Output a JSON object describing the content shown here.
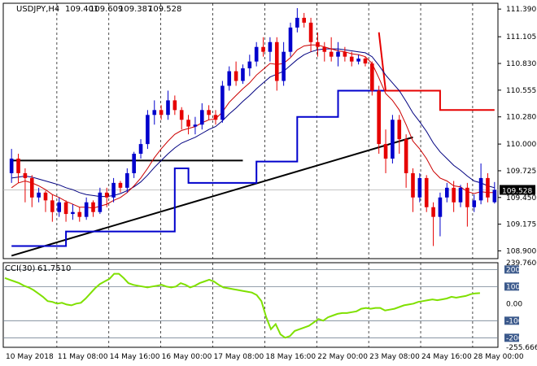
{
  "chart_data": {
    "type": "candlestick",
    "symbol_header": "USDJPY,H4",
    "ohlc_header": [
      "109.401",
      "109.609",
      "109.387",
      "109.528"
    ],
    "price_axis": {
      "range": [
        108.82,
        111.45
      ],
      "ticks": [
        "111.390",
        "111.105",
        "110.830",
        "110.555",
        "110.280",
        "110.000",
        "109.725",
        "109.450",
        "109.175",
        "108.900"
      ],
      "current_price": "109.528"
    },
    "time_axis_labels": [
      "10 May 2018",
      "11 May 08:00",
      "14 May 16:00",
      "16 May 00:00",
      "17 May 08:00",
      "18 May 16:00",
      "22 May 00:00",
      "23 May 08:00",
      "24 May 16:00",
      "28 May 00:00"
    ],
    "colors": {
      "bull": "#0000cc",
      "bear": "#e60000",
      "cci": "#7fe000",
      "support_resistance": "#000000"
    },
    "candles": [
      {
        "o": 109.7,
        "h": 109.95,
        "l": 109.6,
        "c": 109.85
      },
      {
        "o": 109.85,
        "h": 109.9,
        "l": 109.6,
        "c": 109.7
      },
      {
        "o": 109.7,
        "h": 109.75,
        "l": 109.4,
        "c": 109.65
      },
      {
        "o": 109.65,
        "h": 109.68,
        "l": 109.35,
        "c": 109.45
      },
      {
        "o": 109.45,
        "h": 109.55,
        "l": 109.4,
        "c": 109.5
      },
      {
        "o": 109.5,
        "h": 109.52,
        "l": 109.3,
        "c": 109.42
      },
      {
        "o": 109.42,
        "h": 109.48,
        "l": 109.2,
        "c": 109.3
      },
      {
        "o": 109.3,
        "h": 109.45,
        "l": 109.25,
        "c": 109.4
      },
      {
        "o": 109.4,
        "h": 109.42,
        "l": 109.2,
        "c": 109.28
      },
      {
        "o": 109.28,
        "h": 109.38,
        "l": 109.22,
        "c": 109.3
      },
      {
        "o": 109.3,
        "h": 109.35,
        "l": 109.2,
        "c": 109.25
      },
      {
        "o": 109.25,
        "h": 109.45,
        "l": 109.22,
        "c": 109.4
      },
      {
        "o": 109.4,
        "h": 109.42,
        "l": 109.25,
        "c": 109.3
      },
      {
        "o": 109.3,
        "h": 109.55,
        "l": 109.28,
        "c": 109.5
      },
      {
        "o": 109.5,
        "h": 109.55,
        "l": 109.35,
        "c": 109.45
      },
      {
        "o": 109.45,
        "h": 109.65,
        "l": 109.4,
        "c": 109.6
      },
      {
        "o": 109.6,
        "h": 109.62,
        "l": 109.5,
        "c": 109.55
      },
      {
        "o": 109.55,
        "h": 109.75,
        "l": 109.5,
        "c": 109.7
      },
      {
        "o": 109.7,
        "h": 109.92,
        "l": 109.65,
        "c": 109.9
      },
      {
        "o": 109.9,
        "h": 110.05,
        "l": 109.85,
        "c": 110.0
      },
      {
        "o": 110.0,
        "h": 110.35,
        "l": 109.95,
        "c": 110.3
      },
      {
        "o": 110.3,
        "h": 110.45,
        "l": 110.2,
        "c": 110.35
      },
      {
        "o": 110.35,
        "h": 110.4,
        "l": 110.25,
        "c": 110.3
      },
      {
        "o": 110.3,
        "h": 110.55,
        "l": 110.25,
        "c": 110.45
      },
      {
        "o": 110.45,
        "h": 110.5,
        "l": 110.3,
        "c": 110.35
      },
      {
        "o": 110.35,
        "h": 110.38,
        "l": 110.15,
        "c": 110.25
      },
      {
        "o": 110.25,
        "h": 110.3,
        "l": 110.1,
        "c": 110.18
      },
      {
        "o": 110.18,
        "h": 110.28,
        "l": 110.1,
        "c": 110.2
      },
      {
        "o": 110.2,
        "h": 110.42,
        "l": 110.15,
        "c": 110.35
      },
      {
        "o": 110.35,
        "h": 110.4,
        "l": 110.25,
        "c": 110.3
      },
      {
        "o": 110.3,
        "h": 110.35,
        "l": 110.2,
        "c": 110.25
      },
      {
        "o": 110.25,
        "h": 110.65,
        "l": 110.22,
        "c": 110.6
      },
      {
        "o": 110.6,
        "h": 110.8,
        "l": 110.55,
        "c": 110.75
      },
      {
        "o": 110.75,
        "h": 110.85,
        "l": 110.6,
        "c": 110.65
      },
      {
        "o": 110.65,
        "h": 110.82,
        "l": 110.62,
        "c": 110.78
      },
      {
        "o": 110.78,
        "h": 110.92,
        "l": 110.7,
        "c": 110.85
      },
      {
        "o": 110.85,
        "h": 111.05,
        "l": 110.8,
        "c": 111.0
      },
      {
        "o": 111.0,
        "h": 111.1,
        "l": 110.9,
        "c": 110.95
      },
      {
        "o": 110.95,
        "h": 111.1,
        "l": 110.85,
        "c": 111.05
      },
      {
        "o": 111.05,
        "h": 111.1,
        "l": 110.55,
        "c": 110.65
      },
      {
        "o": 110.65,
        "h": 111.05,
        "l": 110.6,
        "c": 110.95
      },
      {
        "o": 110.95,
        "h": 111.25,
        "l": 110.9,
        "c": 111.2
      },
      {
        "o": 111.2,
        "h": 111.4,
        "l": 111.15,
        "c": 111.3
      },
      {
        "o": 111.3,
        "h": 111.35,
        "l": 111.2,
        "c": 111.25
      },
      {
        "o": 111.25,
        "h": 111.3,
        "l": 110.95,
        "c": 111.05
      },
      {
        "o": 111.05,
        "h": 111.15,
        "l": 110.9,
        "c": 111.0
      },
      {
        "o": 111.0,
        "h": 111.05,
        "l": 110.85,
        "c": 110.95
      },
      {
        "o": 110.95,
        "h": 111.1,
        "l": 110.85,
        "c": 110.9
      },
      {
        "o": 110.9,
        "h": 111.05,
        "l": 110.8,
        "c": 110.95
      },
      {
        "o": 110.95,
        "h": 111.0,
        "l": 110.85,
        "c": 110.9
      },
      {
        "o": 110.9,
        "h": 110.95,
        "l": 110.8,
        "c": 110.85
      },
      {
        "o": 110.85,
        "h": 110.92,
        "l": 110.82,
        "c": 110.88
      },
      {
        "o": 110.88,
        "h": 110.9,
        "l": 110.8,
        "c": 110.83
      },
      {
        "o": 110.83,
        "h": 110.85,
        "l": 110.5,
        "c": 110.55
      },
      {
        "o": 110.55,
        "h": 110.6,
        "l": 109.9,
        "c": 110.0
      },
      {
        "o": 110.0,
        "h": 110.15,
        "l": 109.7,
        "c": 109.85
      },
      {
        "o": 109.85,
        "h": 110.3,
        "l": 109.8,
        "c": 110.25
      },
      {
        "o": 110.25,
        "h": 110.3,
        "l": 109.9,
        "c": 110.05
      },
      {
        "o": 110.05,
        "h": 110.1,
        "l": 109.55,
        "c": 109.7
      },
      {
        "o": 109.7,
        "h": 109.75,
        "l": 109.3,
        "c": 109.45
      },
      {
        "o": 109.45,
        "h": 109.7,
        "l": 109.4,
        "c": 109.65
      },
      {
        "o": 109.65,
        "h": 109.68,
        "l": 109.3,
        "c": 109.35
      },
      {
        "o": 109.35,
        "h": 109.4,
        "l": 108.95,
        "c": 109.25
      },
      {
        "o": 109.25,
        "h": 109.5,
        "l": 109.05,
        "c": 109.45
      },
      {
        "o": 109.45,
        "h": 109.6,
        "l": 109.4,
        "c": 109.55
      },
      {
        "o": 109.55,
        "h": 109.62,
        "l": 109.3,
        "c": 109.4
      },
      {
        "o": 109.4,
        "h": 109.58,
        "l": 109.35,
        "c": 109.55
      },
      {
        "o": 109.55,
        "h": 109.6,
        "l": 109.15,
        "c": 109.35
      },
      {
        "o": 109.35,
        "h": 109.48,
        "l": 109.3,
        "c": 109.42
      },
      {
        "o": 109.42,
        "h": 109.8,
        "l": 109.38,
        "c": 109.65
      },
      {
        "o": 109.65,
        "h": 109.7,
        "l": 109.4,
        "c": 109.45
      },
      {
        "o": 109.401,
        "h": 109.609,
        "l": 109.387,
        "c": 109.528
      }
    ],
    "ma_fast_color": "#cc0000",
    "ma_slow_color": "#000080",
    "ma_fast": [
      109.55,
      109.6,
      109.62,
      109.6,
      109.57,
      109.53,
      109.48,
      109.45,
      109.41,
      109.38,
      109.35,
      109.35,
      109.34,
      109.36,
      109.38,
      109.42,
      109.45,
      109.5,
      109.57,
      109.65,
      109.75,
      109.86,
      109.95,
      110.03,
      110.1,
      110.14,
      110.16,
      110.18,
      110.22,
      110.25,
      110.26,
      110.33,
      110.43,
      110.5,
      110.57,
      110.63,
      110.71,
      110.77,
      110.83,
      110.82,
      110.83,
      110.89,
      110.97,
      111.01,
      111.02,
      111.02,
      111.0,
      110.98,
      110.96,
      110.95,
      110.93,
      110.92,
      110.9,
      110.83,
      110.68,
      110.52,
      110.45,
      110.35,
      110.2,
      110.03,
      109.95,
      109.85,
      109.72,
      109.65,
      109.62,
      109.57,
      109.56,
      109.51,
      109.49,
      109.51,
      109.5,
      109.5
    ],
    "ma_slow": [
      109.65,
      109.66,
      109.67,
      109.66,
      109.64,
      109.62,
      109.6,
      109.58,
      109.55,
      109.53,
      109.5,
      109.48,
      109.47,
      109.46,
      109.46,
      109.47,
      109.49,
      109.52,
      109.56,
      109.61,
      109.68,
      109.76,
      109.83,
      109.9,
      109.96,
      110.01,
      110.04,
      110.07,
      110.11,
      110.15,
      110.18,
      110.24,
      110.31,
      110.37,
      110.44,
      110.5,
      110.57,
      110.63,
      110.69,
      110.72,
      110.75,
      110.81,
      110.87,
      110.92,
      110.95,
      110.97,
      110.98,
      110.98,
      110.98,
      110.97,
      110.96,
      110.95,
      110.94,
      110.9,
      110.81,
      110.71,
      110.63,
      110.55,
      110.44,
      110.32,
      110.23,
      110.13,
      110.01,
      109.92,
      109.85,
      109.78,
      109.73,
      109.67,
      109.62,
      109.6,
      109.57,
      109.55
    ],
    "support_stop": [
      [
        0,
        108.95
      ],
      [
        8,
        108.95
      ],
      [
        8,
        109.1
      ],
      [
        24,
        109.1
      ],
      [
        24,
        109.75
      ],
      [
        26,
        109.75
      ],
      [
        26,
        109.6
      ],
      [
        36,
        109.6
      ],
      [
        36,
        109.82
      ],
      [
        42,
        109.82
      ],
      [
        42,
        110.28
      ],
      [
        48,
        110.28
      ],
      [
        48,
        110.55
      ],
      [
        55,
        110.55
      ]
    ],
    "resistance_stop": [
      [
        54,
        111.15
      ],
      [
        55,
        110.55
      ],
      [
        63,
        110.55
      ],
      [
        63,
        110.35
      ],
      [
        71,
        110.35
      ]
    ],
    "horizontal_line": {
      "from": 0,
      "to": 34,
      "value": 109.83
    },
    "trend_line": {
      "from": [
        0,
        108.85
      ],
      "to": [
        59,
        110.07
      ]
    },
    "cci": {
      "label": "CCI(30)",
      "value": "61.7510",
      "scale_ticks": [
        "239.7606",
        "200",
        "100",
        "0.00",
        "-100",
        "-200",
        "-255.6662"
      ],
      "range": [
        -255.6662,
        239.7606
      ],
      "levels": [
        200,
        100,
        -100,
        -200
      ],
      "values": [
        150,
        140,
        130,
        120,
        105,
        95,
        80,
        60,
        40,
        15,
        10,
        0,
        5,
        -5,
        -10,
        0,
        5,
        30,
        60,
        90,
        115,
        130,
        145,
        175,
        175,
        150,
        120,
        110,
        105,
        100,
        95,
        100,
        105,
        110,
        100,
        95,
        100,
        120,
        110,
        95,
        105,
        120,
        130,
        140,
        130,
        110,
        95,
        90,
        85,
        80,
        75,
        70,
        65,
        50,
        15,
        -80,
        -150,
        -120,
        -180,
        -200,
        -190,
        -160,
        -150,
        -140,
        -130,
        -110,
        -90,
        -100,
        -80,
        -70,
        -60,
        -55,
        -55,
        -50,
        -45,
        -30,
        -25,
        -30,
        -25,
        -25,
        -40,
        -35,
        -30,
        -20,
        -10,
        -5,
        0,
        10,
        15,
        20,
        25,
        20,
        25,
        30,
        40,
        35,
        40,
        45,
        55,
        60,
        61.751
      ]
    }
  }
}
